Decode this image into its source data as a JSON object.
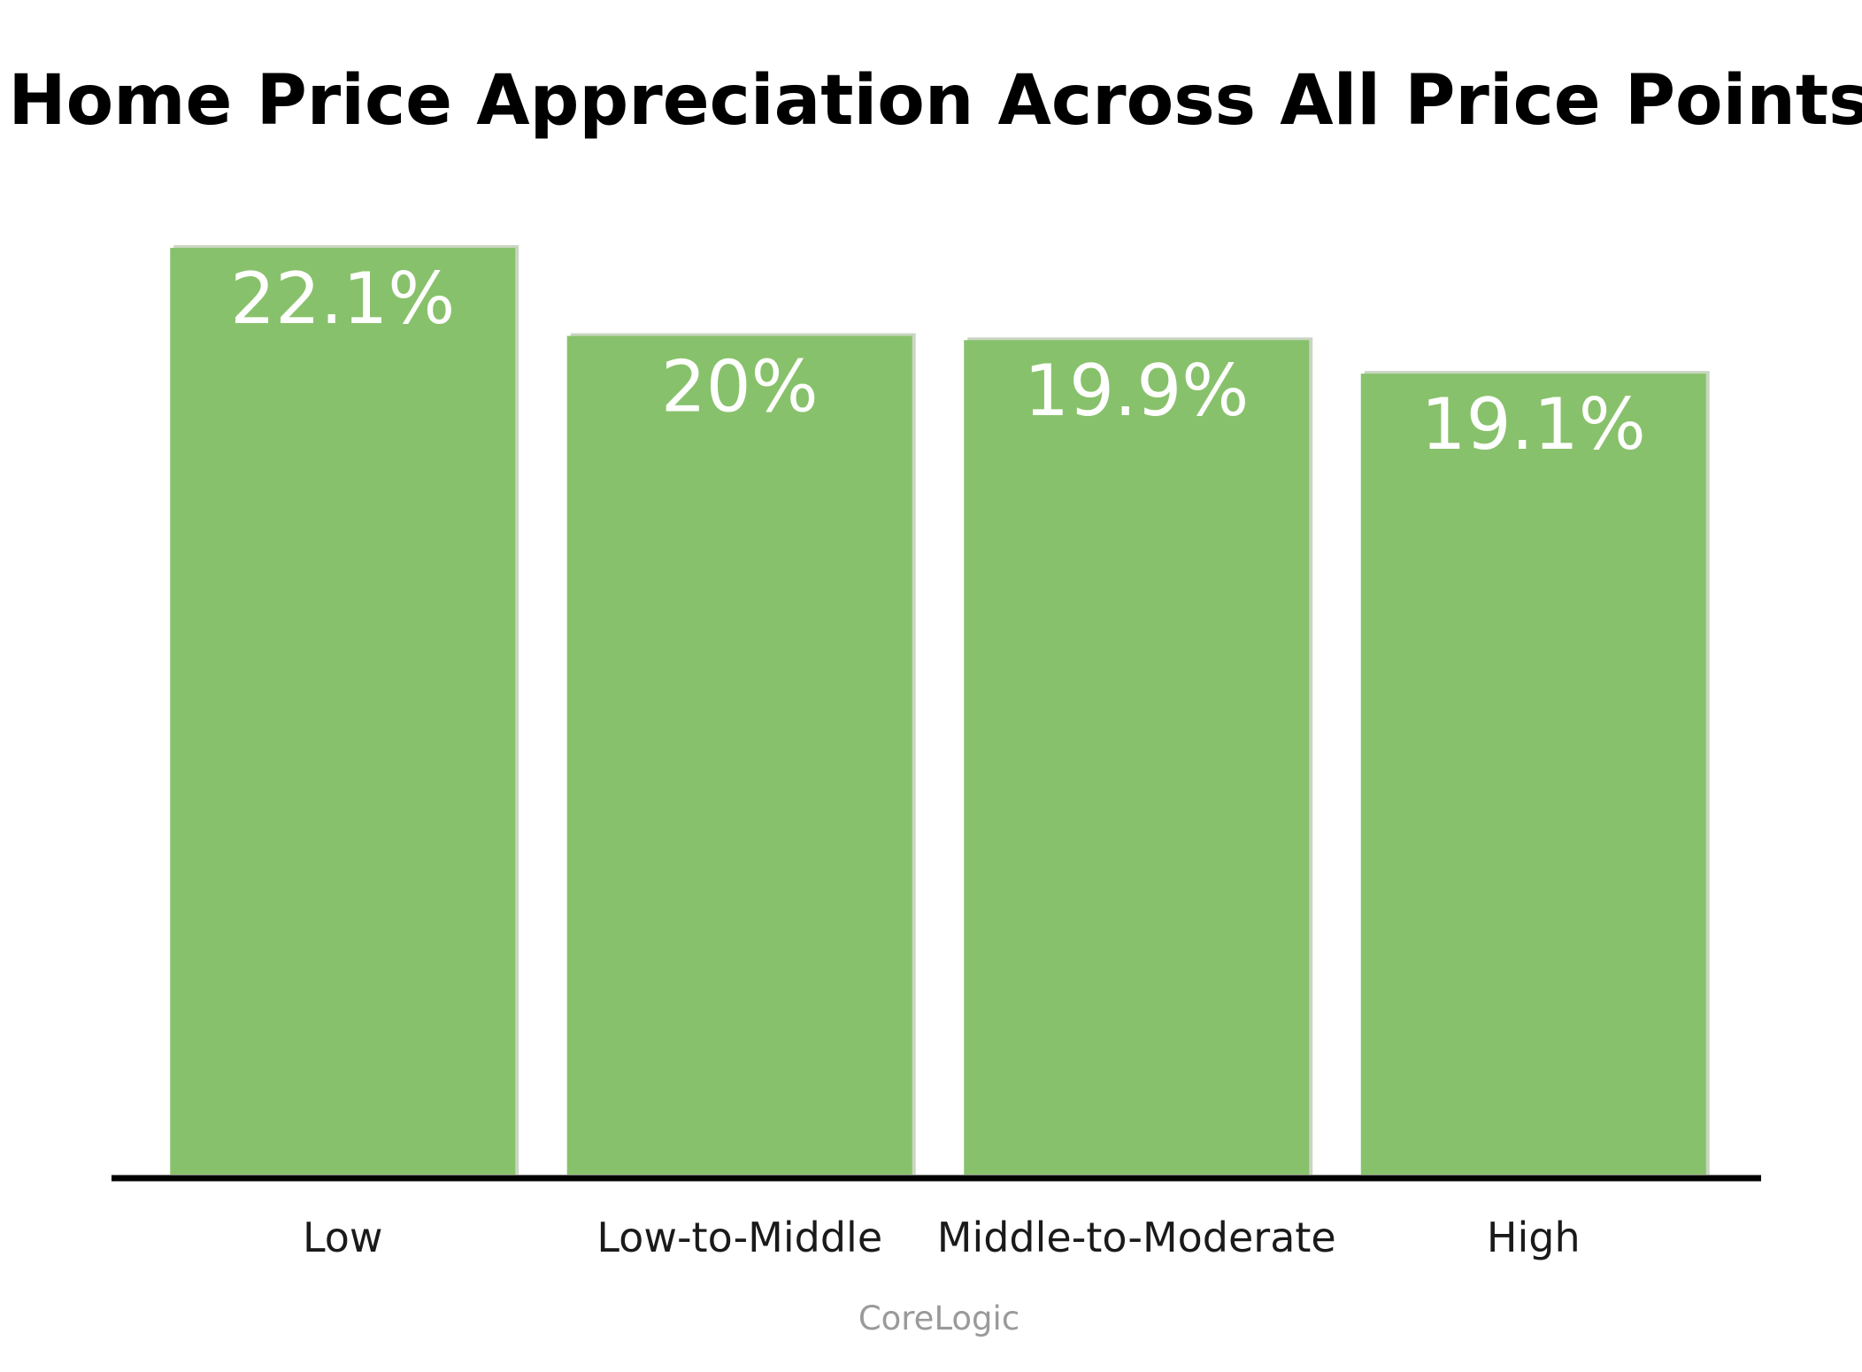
{
  "chart_data": {
    "type": "bar",
    "title": "Home Price Appreciation Across All Price Points",
    "categories": [
      "Low",
      "Low-to-Middle",
      "Middle-to-Moderate",
      "High"
    ],
    "values": [
      22.1,
      20,
      19.9,
      19.1
    ],
    "data_labels": [
      "22.1%",
      "20%",
      "19.9%",
      "19.1%"
    ],
    "source": "CoreLogic",
    "xlabel": "",
    "ylabel": "",
    "ylim": [
      0,
      22.1
    ],
    "grid": false,
    "legend": "none",
    "colors": {
      "bar": "#88c16b",
      "axis": "#000000",
      "data_label": "#ffffff",
      "source": "#9a9a9a"
    }
  }
}
